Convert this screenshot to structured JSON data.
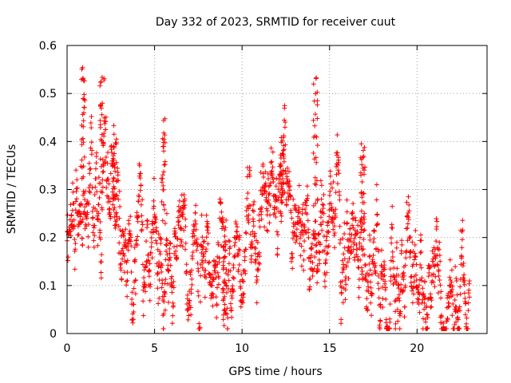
{
  "chart_data": {
    "type": "scatter",
    "title": "Day 332 of 2023, SRMTID for receiver cuut",
    "xlabel": "GPS time / hours",
    "ylabel": "SRMTID / TECUs",
    "xlim": [
      0,
      24
    ],
    "ylim": [
      0,
      0.6
    ],
    "xticks": [
      0,
      5,
      10,
      15,
      20
    ],
    "xtick_labels": [
      "0",
      "5",
      "10",
      "15",
      "20"
    ],
    "yticks": [
      0,
      0.1,
      0.2,
      0.3,
      0.4,
      0.5,
      0.6
    ],
    "ytick_labels": [
      "0",
      "0.1",
      "0.2",
      "0.3",
      "0.4",
      "0.5",
      "0.6"
    ],
    "grid": true,
    "marker": "+",
    "color": "#ff0000",
    "trend": [
      [
        0.0,
        0.2
      ],
      [
        0.5,
        0.25
      ],
      [
        1.0,
        0.33
      ],
      [
        1.5,
        0.31
      ],
      [
        2.0,
        0.29
      ],
      [
        2.5,
        0.29
      ],
      [
        3.0,
        0.24
      ],
      [
        3.5,
        0.17
      ],
      [
        4.0,
        0.17
      ],
      [
        4.5,
        0.2
      ],
      [
        5.0,
        0.21
      ],
      [
        5.5,
        0.22
      ],
      [
        6.0,
        0.22
      ],
      [
        6.5,
        0.2
      ],
      [
        7.0,
        0.19
      ],
      [
        8.0,
        0.19
      ],
      [
        9.0,
        0.17
      ],
      [
        9.5,
        0.15
      ],
      [
        10.0,
        0.18
      ],
      [
        10.5,
        0.23
      ],
      [
        11.0,
        0.26
      ],
      [
        11.5,
        0.27
      ],
      [
        12.0,
        0.28
      ],
      [
        12.5,
        0.27
      ],
      [
        13.0,
        0.22
      ],
      [
        13.5,
        0.2
      ],
      [
        14.0,
        0.23
      ],
      [
        14.5,
        0.26
      ],
      [
        15.0,
        0.26
      ],
      [
        15.5,
        0.25
      ],
      [
        16.0,
        0.24
      ],
      [
        16.5,
        0.22
      ],
      [
        17.0,
        0.21
      ],
      [
        17.5,
        0.16
      ],
      [
        18.0,
        0.13
      ],
      [
        18.5,
        0.14
      ],
      [
        19.0,
        0.17
      ],
      [
        19.5,
        0.19
      ],
      [
        20.0,
        0.16
      ],
      [
        20.5,
        0.1
      ],
      [
        21.0,
        0.08
      ],
      [
        21.5,
        0.09
      ],
      [
        22.0,
        0.1
      ],
      [
        22.5,
        0.11
      ],
      [
        23.0,
        0.11
      ]
    ],
    "spread": 0.07,
    "spikes": [
      {
        "x": 0.9,
        "y": 0.56
      },
      {
        "x": 2.0,
        "y": 0.54
      },
      {
        "x": 5.5,
        "y": 0.44
      },
      {
        "x": 14.2,
        "y": 0.53
      },
      {
        "x": 12.3,
        "y": 0.4
      },
      {
        "x": 16.9,
        "y": 0.39
      },
      {
        "x": 2.7,
        "y": 0.42
      },
      {
        "x": 9.0,
        "y": 0.03
      }
    ]
  }
}
